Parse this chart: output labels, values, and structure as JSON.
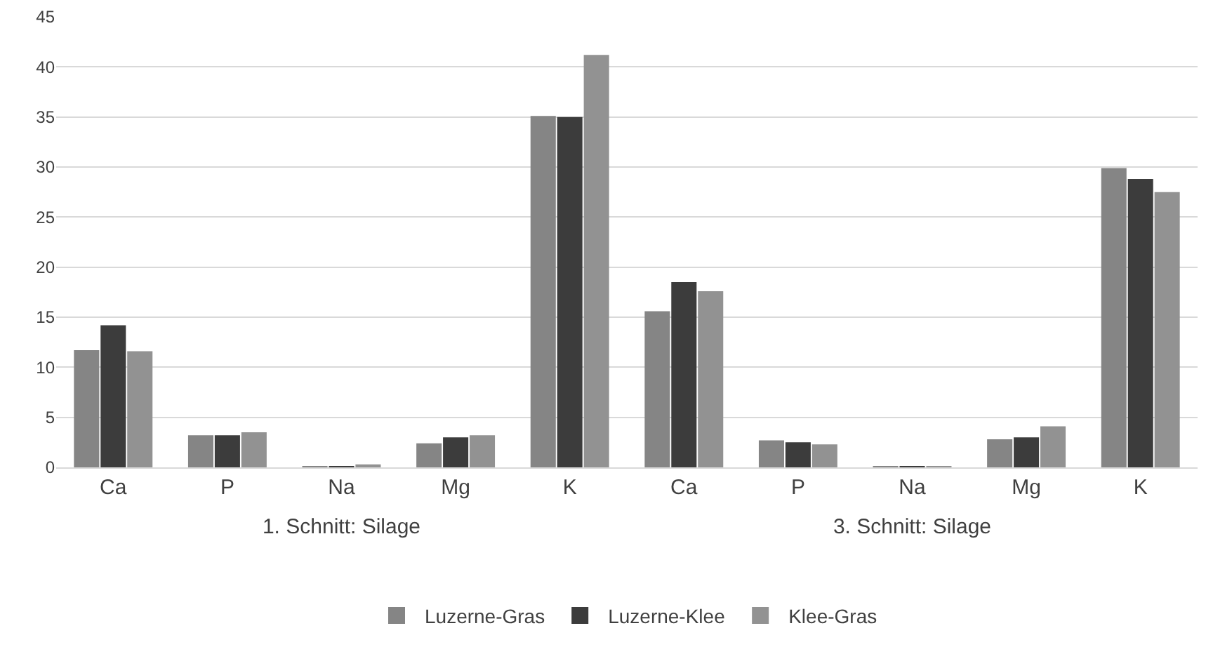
{
  "chart_data": [
    {
      "type": "bar",
      "xlabel": "1. Schnitt: Silage",
      "categories": [
        "Ca",
        "P",
        "Na",
        "Mg",
        "K"
      ],
      "ylim": [
        0,
        45
      ],
      "yticks": [
        0,
        5,
        10,
        15,
        20,
        25,
        30,
        35,
        40,
        45
      ],
      "grid": "y",
      "legend": "bottom",
      "series": [
        {
          "name": "Luzerne-Gras",
          "color": "#858585",
          "values": [
            11.7,
            3.2,
            0.1,
            2.4,
            35.1
          ]
        },
        {
          "name": "Luzerne-Klee",
          "color": "#3c3c3c",
          "values": [
            14.2,
            3.2,
            0.1,
            3.0,
            35.0
          ]
        },
        {
          "name": "Klee-Gras",
          "color": "#929292",
          "values": [
            11.6,
            3.5,
            0.3,
            3.2,
            41.2
          ]
        }
      ]
    },
    {
      "type": "bar",
      "xlabel": "3. Schnitt: Silage",
      "categories": [
        "Ca",
        "P",
        "Na",
        "Mg",
        "K"
      ],
      "ylim": [
        0,
        45
      ],
      "yticks": [
        0,
        5,
        10,
        15,
        20,
        25,
        30,
        35,
        40,
        45
      ],
      "grid": "y",
      "legend": "bottom",
      "tick_labels": "x",
      "series": [
        {
          "name": "Luzerne-Gras",
          "color": "#858585",
          "values": [
            15.6,
            2.7,
            0.1,
            2.8,
            29.9
          ]
        },
        {
          "name": "Luzerne-Klee",
          "color": "#3c3c3c",
          "values": [
            18.5,
            2.5,
            0.1,
            3.0,
            28.8
          ]
        },
        {
          "name": "Klee-Gras",
          "color": "#929292",
          "values": [
            17.6,
            2.3,
            0.1,
            4.1,
            27.5
          ]
        }
      ]
    }
  ]
}
